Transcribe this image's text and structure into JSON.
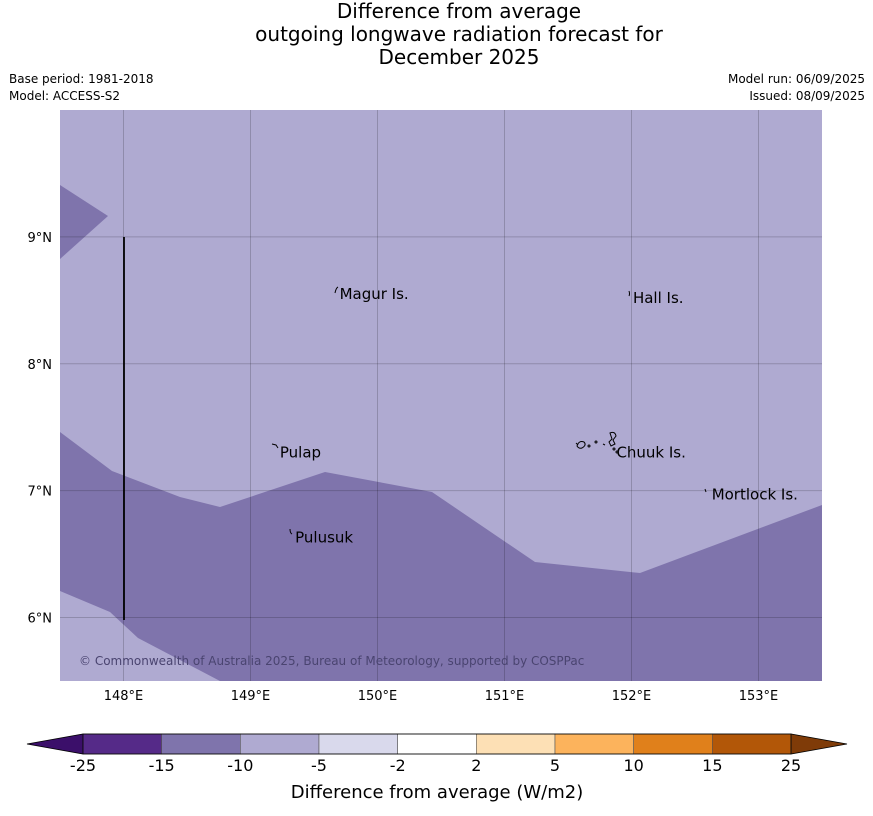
{
  "title": {
    "line1": "Difference from average",
    "line2": "outgoing longwave radiation forecast for",
    "line3": "December 2025"
  },
  "meta": {
    "base_period": "Base period: 1981-2018",
    "model": "Model: ACCESS-S2",
    "model_run": "Model run: 06/09/2025",
    "issued": "Issued: 08/09/2025"
  },
  "map": {
    "lon_range": [
      147.5,
      153.5
    ],
    "lat_range": [
      5.5,
      10.0
    ],
    "lon_ticks": [
      {
        "value": 148,
        "label": "148°E"
      },
      {
        "value": 149,
        "label": "149°E"
      },
      {
        "value": 150,
        "label": "150°E"
      },
      {
        "value": 151,
        "label": "151°E"
      },
      {
        "value": 152,
        "label": "152°E"
      },
      {
        "value": 153,
        "label": "153°E"
      }
    ],
    "lat_ticks": [
      {
        "value": 9,
        "label": "9°N"
      },
      {
        "value": 8,
        "label": "8°N"
      },
      {
        "value": 7,
        "label": "7°N"
      },
      {
        "value": 6,
        "label": "6°N"
      }
    ],
    "places": [
      {
        "name": "Magur Is.",
        "lon": 149.67,
        "lat": 8.55
      },
      {
        "name": "Hall Is.",
        "lon": 151.98,
        "lat": 8.52
      },
      {
        "name": "Pulap",
        "lon": 149.2,
        "lat": 7.3
      },
      {
        "name": "Chuuk Is.",
        "lon": 151.85,
        "lat": 7.3
      },
      {
        "name": "Mortlock Is.",
        "lon": 152.6,
        "lat": 6.97
      },
      {
        "name": "Pulusuk",
        "lon": 149.32,
        "lat": 6.63
      }
    ],
    "copyright": "© Commonwealth of Australia 2025, Bureau of Meteorology, supported by COSPPac",
    "fill_colors": {
      "light": "#afaad1",
      "dark": "#7f74ac"
    }
  },
  "colorbar": {
    "title": "Difference from average (W/m2)",
    "labels": [
      "-25",
      "-15",
      "-10",
      "-5",
      "-2",
      "2",
      "5",
      "10",
      "15",
      "25"
    ],
    "colors": [
      "#552a88",
      "#7f74ac",
      "#afaad1",
      "#d9d9ec",
      "#ffffff",
      "#fde0b5",
      "#fcb35c",
      "#e0801b",
      "#b25708"
    ],
    "under_color": "#3b0f6a",
    "over_color": "#7f3b08"
  }
}
